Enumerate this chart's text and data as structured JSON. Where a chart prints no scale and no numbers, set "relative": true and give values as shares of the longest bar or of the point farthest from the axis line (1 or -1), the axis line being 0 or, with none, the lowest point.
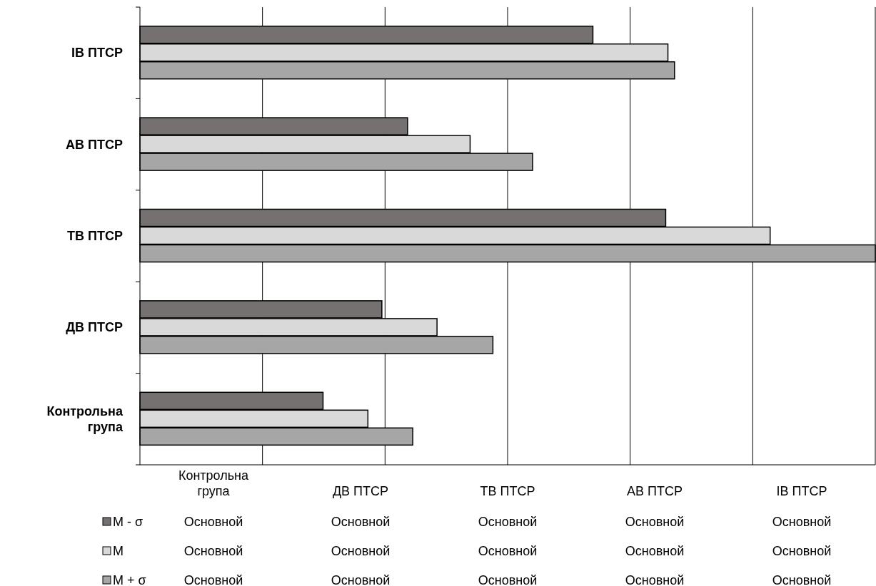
{
  "chart_data": {
    "type": "bar",
    "orientation": "horizontal",
    "relative": true,
    "grid": "x",
    "legend": "bottom",
    "categories": [
      "ІВ ПТСР",
      "АВ ПТСР",
      "ТВ ПТСР",
      "ДВ ПТСР",
      "Контрольна група"
    ],
    "series": [
      {
        "name": "M - σ",
        "color": "#767171",
        "values": [
          0.616,
          0.364,
          0.715,
          0.329,
          0.249
        ]
      },
      {
        "name": "M",
        "color": "#d9d9d9",
        "values": [
          0.718,
          0.449,
          0.857,
          0.404,
          0.31
        ]
      },
      {
        "name": "M + σ",
        "color": "#a6a6a6",
        "values": [
          0.727,
          0.534,
          1,
          0.48,
          0.371
        ]
      }
    ],
    "annotations": [
      "Основной",
      "Основной",
      "Основной",
      "Основной",
      "Основной",
      "Основной",
      "Основной",
      "Основной",
      "Основной",
      "Основной",
      "Основной",
      "Основной",
      "Основной",
      "Основной",
      "Основной"
    ]
  }
}
